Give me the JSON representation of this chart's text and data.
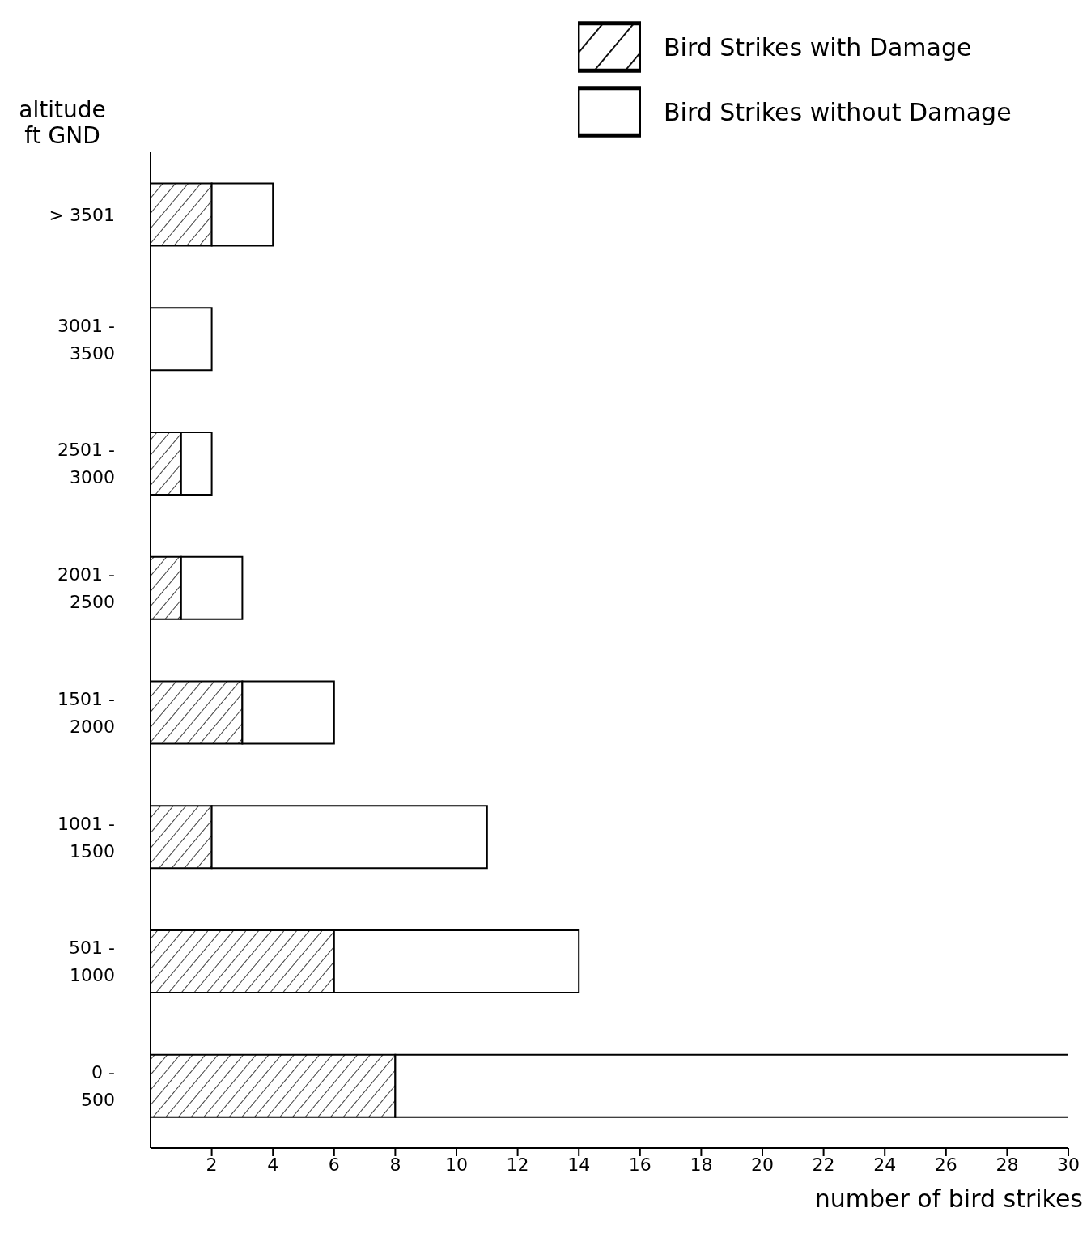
{
  "chart_data": {
    "type": "bar",
    "orientation": "horizontal",
    "stacked": true,
    "ylabel": "altitude\nft GND",
    "xlabel": "number of bird strikes",
    "categories": [
      "> 3501",
      "3001 -\n3500",
      "2501 -\n3000",
      "2001 -\n2500",
      "1501 -\n2000",
      "1001 -\n1500",
      "501 -\n1000",
      "0 -\n500"
    ],
    "series": [
      {
        "name": "Bird Strikes with Damage",
        "color": "#000000",
        "values": [
          2,
          0,
          1,
          1,
          3,
          2,
          6,
          8
        ]
      },
      {
        "name": "Bird Strikes without Damage",
        "color": "#ffffff",
        "values": [
          2,
          2,
          1,
          2,
          3,
          9,
          8,
          22
        ]
      }
    ],
    "xlim": [
      0,
      30
    ],
    "xticks": [
      2,
      4,
      6,
      8,
      10,
      12,
      14,
      16,
      18,
      20,
      22,
      24,
      26,
      28,
      30
    ],
    "grid": false,
    "legend": "top right"
  }
}
